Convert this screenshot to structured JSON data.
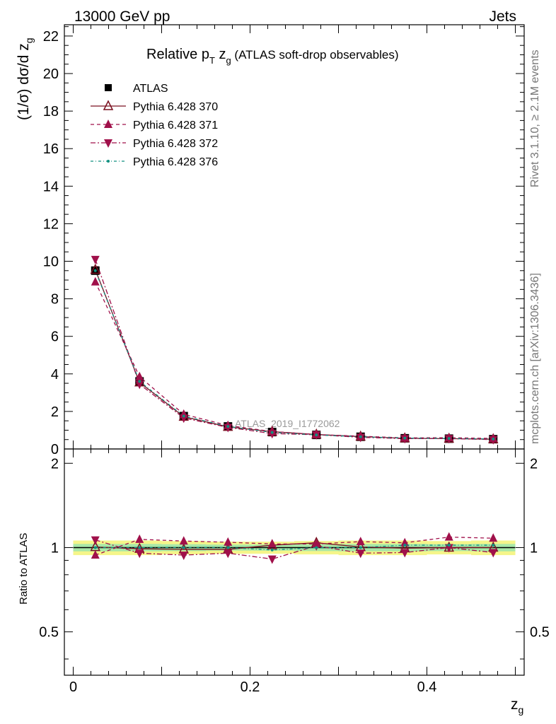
{
  "header": {
    "left": "13000 GeV pp",
    "right": "Jets"
  },
  "side_labels": {
    "rivet": "Rivet 3.1.10, ≥ 2.1M events",
    "mcplots": "mcplots.cern.ch [arXiv:1306.3436]"
  },
  "watermark": "ATLAS_2019_I1772062",
  "chart_data": [
    {
      "type": "line",
      "title": {
        "main": "Relative p",
        "sub_T": "T",
        "var": " z",
        "sub_g": "g",
        "rest": " (ATLAS soft-drop observables)"
      },
      "ylabel": {
        "text": "(1/σ) dσ/d z",
        "sub": "g"
      },
      "xlabel": {
        "text": "z",
        "sub": "g"
      },
      "xlim": [
        -0.01,
        0.51
      ],
      "ylim": [
        0,
        22.6
      ],
      "y_ticks": [
        "0",
        "2",
        "4",
        "6",
        "8",
        "10",
        "12",
        "14",
        "16",
        "18",
        "20",
        "22"
      ],
      "x_ticks": [
        "0",
        "0.2",
        "0.4"
      ],
      "legend_position": "top-left",
      "x": [
        0.025,
        0.075,
        0.125,
        0.175,
        0.225,
        0.275,
        0.325,
        0.375,
        0.425,
        0.475
      ],
      "series": [
        {
          "name": "ATLAS",
          "color": "#000000",
          "marker": "square",
          "style": "none",
          "values": [
            9.5,
            3.6,
            1.75,
            1.2,
            0.9,
            0.75,
            0.65,
            0.57,
            0.55,
            0.52
          ]
        },
        {
          "name": "Pythia 6.428 370",
          "color": "#7a1020",
          "marker": "triangle-up-open",
          "style": "solid",
          "values": [
            9.55,
            3.55,
            1.72,
            1.18,
            0.92,
            0.77,
            0.66,
            0.57,
            0.55,
            0.52
          ]
        },
        {
          "name": "Pythia 6.428 371",
          "color": "#a0104a",
          "marker": "triangle-up",
          "style": "dashed",
          "values": [
            8.9,
            3.85,
            1.85,
            1.25,
            0.93,
            0.77,
            0.68,
            0.59,
            0.6,
            0.56
          ]
        },
        {
          "name": "Pythia 6.428 372",
          "color": "#a0104a",
          "marker": "triangle-down",
          "style": "dashdot",
          "values": [
            10.1,
            3.45,
            1.65,
            1.15,
            0.82,
            0.76,
            0.62,
            0.55,
            0.55,
            0.5
          ]
        },
        {
          "name": "Pythia 6.428 376",
          "color": "#109080",
          "marker": "dot",
          "style": "dashdot-fine",
          "values": [
            9.5,
            3.6,
            1.75,
            1.2,
            0.88,
            0.75,
            0.65,
            0.58,
            0.56,
            0.53
          ]
        }
      ]
    },
    {
      "type": "line",
      "ylabel": "Ratio to ATLAS",
      "ylim": [
        0.35,
        2.25
      ],
      "y_ticks": [
        "0.5",
        "1",
        "2"
      ],
      "x": [
        0.025,
        0.075,
        0.125,
        0.175,
        0.225,
        0.275,
        0.325,
        0.375,
        0.425,
        0.475
      ],
      "band_yellow": [
        0.06,
        0.06,
        0.055,
        0.05,
        0.05,
        0.055,
        0.06,
        0.06,
        0.055,
        0.06
      ],
      "band_green": [
        0.03,
        0.03,
        0.028,
        0.025,
        0.025,
        0.028,
        0.03,
        0.03,
        0.028,
        0.03
      ],
      "series": [
        {
          "name": "Pythia 6.428 370",
          "values": [
            1.005,
            0.99,
            0.985,
            0.985,
            1.02,
            1.04,
            1.005,
            0.995,
            1.0,
            1.0
          ]
        },
        {
          "name": "Pythia 6.428 371",
          "values": [
            0.94,
            1.07,
            1.055,
            1.045,
            1.03,
            1.03,
            1.05,
            1.04,
            1.09,
            1.08
          ]
        },
        {
          "name": "Pythia 6.428 372",
          "values": [
            1.065,
            0.955,
            0.94,
            0.955,
            0.91,
            1.015,
            0.955,
            0.96,
            1.0,
            0.96
          ]
        },
        {
          "name": "Pythia 6.428 376",
          "values": [
            1.0,
            1.0,
            1.0,
            1.0,
            0.98,
            1.0,
            1.0,
            1.02,
            1.02,
            1.02
          ]
        }
      ]
    }
  ]
}
